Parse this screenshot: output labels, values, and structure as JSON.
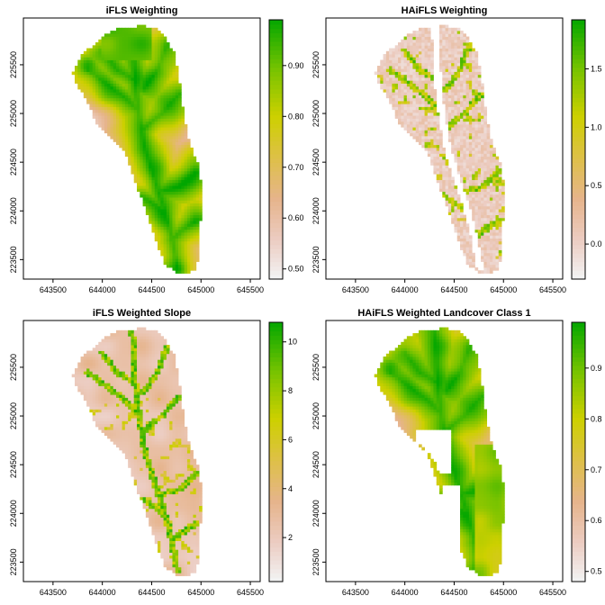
{
  "chart_data": [
    {
      "type": "heatmap",
      "title": "iFLS Weighting",
      "xlabel": "",
      "ylabel": "",
      "xlim": [
        643200,
        645600
      ],
      "ylim": [
        223300,
        225980
      ],
      "x_ticks": [
        "643500",
        "644000",
        "644500",
        "645000",
        "645500"
      ],
      "y_ticks": [
        "223500",
        "224000",
        "224500",
        "225000",
        "225500"
      ],
      "colorbar": {
        "range": [
          0.48,
          0.99
        ],
        "ticks": [
          "0.50",
          "0.60",
          "0.70",
          "0.80",
          "0.90"
        ]
      },
      "pattern": "smooth"
    },
    {
      "type": "heatmap",
      "title": "HAiFLS Weighting",
      "xlabel": "",
      "ylabel": "",
      "xlim": [
        643200,
        645600
      ],
      "ylim": [
        223300,
        225980
      ],
      "x_ticks": [
        "643500",
        "644000",
        "644500",
        "645000",
        "645500"
      ],
      "y_ticks": [
        "223500",
        "224000",
        "224500",
        "225000",
        "225500"
      ],
      "colorbar": {
        "range": [
          -0.3,
          1.92
        ],
        "ticks": [
          "0.0",
          "0.5",
          "1.0",
          "1.5"
        ]
      },
      "pattern": "streams"
    },
    {
      "type": "heatmap",
      "title": "iFLS Weighted Slope",
      "xlabel": "",
      "ylabel": "",
      "xlim": [
        643200,
        645600
      ],
      "ylim": [
        223300,
        225980
      ],
      "x_ticks": [
        "643500",
        "644000",
        "644500",
        "645000",
        "645500"
      ],
      "y_ticks": [
        "223500",
        "224000",
        "224500",
        "225000",
        "225500"
      ],
      "colorbar": {
        "range": [
          0.2,
          10.8
        ],
        "ticks": [
          "2",
          "4",
          "6",
          "8",
          "10"
        ]
      },
      "pattern": "slope"
    },
    {
      "type": "heatmap",
      "title": "HAiFLS Weighted Landcover Class 1",
      "xlabel": "",
      "ylabel": "",
      "xlim": [
        643200,
        645600
      ],
      "ylim": [
        223300,
        225980
      ],
      "x_ticks": [
        "643500",
        "644000",
        "644500",
        "645000",
        "645500"
      ],
      "y_ticks": [
        "223500",
        "224000",
        "224500",
        "225000",
        "225500"
      ],
      "colorbar": {
        "range": [
          0.48,
          0.99
        ],
        "ticks": [
          "0.5",
          "0.6",
          "0.7",
          "0.8",
          "0.9"
        ]
      },
      "pattern": "landcover"
    }
  ]
}
